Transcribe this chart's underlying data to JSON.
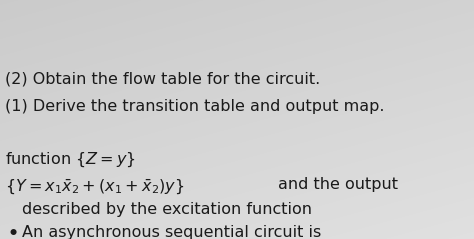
{
  "background_color": "#cdc8c0",
  "bullet_text_line1": "An asynchronous sequential circuit is",
  "bullet_text_line2": "described by the excitation function",
  "math_line1_prefix": "$\\{Y = x_1\\bar{x}_2 + (x_1 + \\bar{x}_2)y\\}$",
  "math_line1_suffix": "and the output",
  "math_line2": "function $\\{ Z = y \\}$",
  "item1": "(1) Derive the transition table and output map.",
  "item2": "(2) Obtain the flow table for the circuit.",
  "bullet": "•",
  "text_color": "#1a1a1a",
  "fontsize_main": 11.5
}
